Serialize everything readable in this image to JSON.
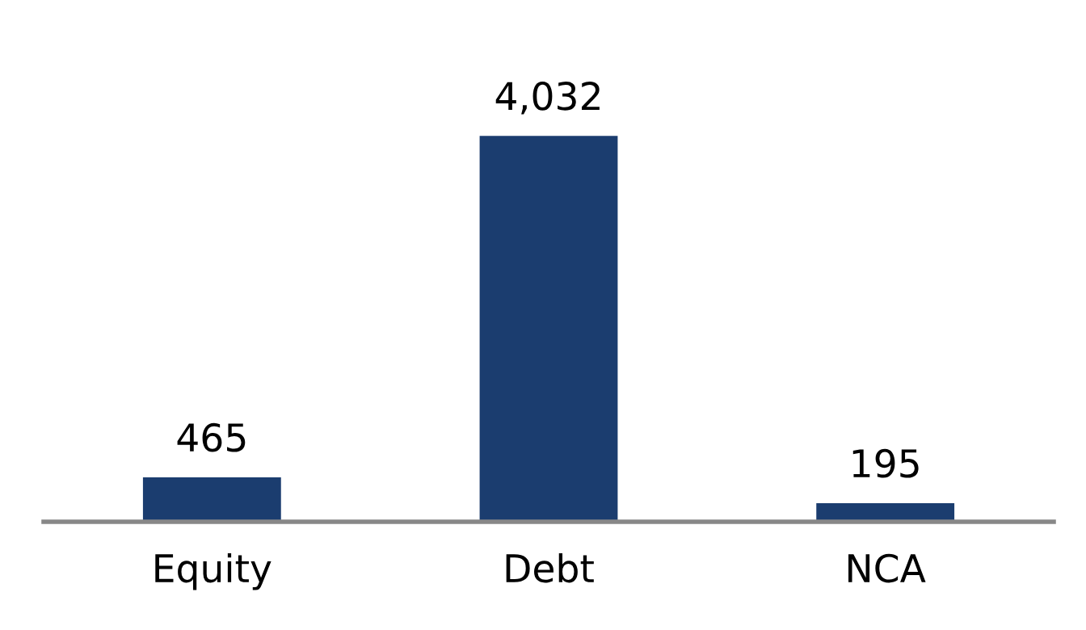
{
  "chart_data": {
    "type": "bar",
    "categories": [
      "Equity",
      "Debt",
      "NCA"
    ],
    "values": [
      465,
      4032,
      195
    ],
    "value_labels": [
      "465",
      "4,032",
      "195"
    ],
    "color": "#1b3d6f",
    "grid": false,
    "legend": false
  }
}
